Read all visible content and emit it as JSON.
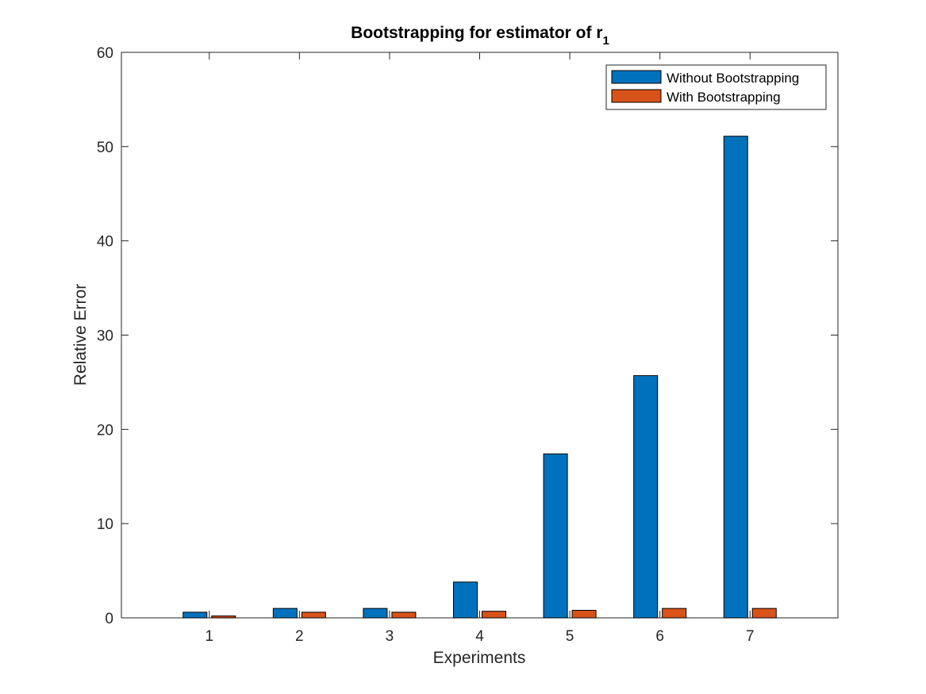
{
  "chart_data": {
    "type": "bar",
    "title": "Bootstrapping for estimator of r",
    "title_subscript": "1",
    "xlabel": "Experiments",
    "ylabel": "Relative Error",
    "categories": [
      "1",
      "2",
      "3",
      "4",
      "5",
      "6",
      "7"
    ],
    "ylim": [
      0,
      60
    ],
    "yticks": [
      0,
      10,
      20,
      30,
      40,
      50,
      60
    ],
    "grid": false,
    "legend_position": "top-right",
    "series": [
      {
        "name": "Without Bootstrapping",
        "color": "#0072BD",
        "values": [
          0.6,
          1.0,
          1.0,
          3.8,
          17.4,
          25.7,
          51.1
        ]
      },
      {
        "name": "With Bootstrapping",
        "color": "#D95319",
        "values": [
          0.2,
          0.6,
          0.6,
          0.7,
          0.8,
          1.0,
          1.0
        ]
      }
    ]
  }
}
